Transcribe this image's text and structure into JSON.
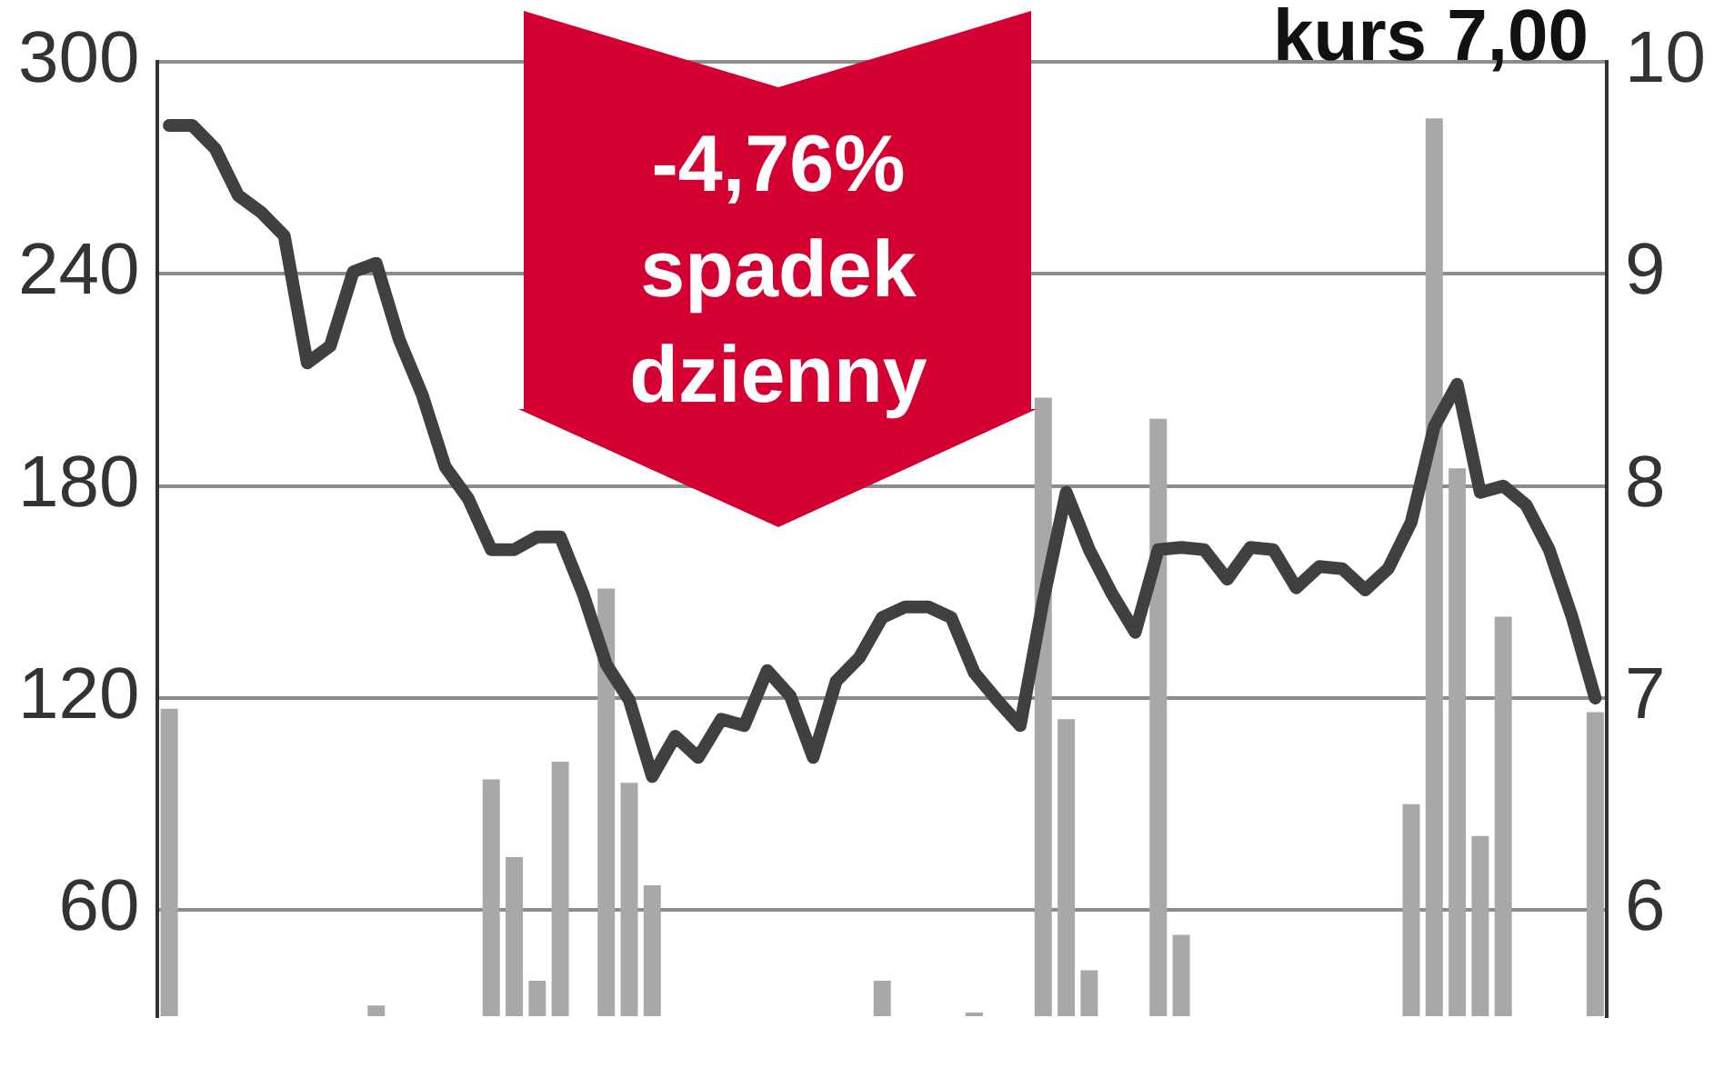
{
  "chart_data": {
    "type": "bar",
    "title": "kurs 7,00",
    "categories": [
      null,
      null,
      null,
      null,
      null,
      null,
      null,
      null,
      null,
      null,
      null,
      null,
      null,
      null,
      null,
      null,
      null,
      null,
      null,
      null,
      null,
      null,
      null,
      null,
      null,
      null,
      null,
      null,
      null,
      null,
      null,
      null,
      null,
      null,
      null,
      null,
      null,
      null,
      null,
      null,
      null,
      null,
      null,
      null,
      null,
      null,
      null,
      null,
      null,
      null,
      null,
      null,
      null,
      null,
      null,
      null,
      null,
      null,
      null,
      null,
      null,
      null,
      null
    ],
    "series": [
      {
        "color": "#a8a8a8",
        "values": [
          117,
          null,
          null,
          null,
          null,
          null,
          null,
          null,
          null,
          33,
          null,
          null,
          null,
          null,
          97,
          75,
          40,
          102,
          null,
          151,
          96,
          67,
          null,
          null,
          null,
          null,
          null,
          null,
          null,
          null,
          null,
          40,
          null,
          null,
          null,
          31,
          null,
          null,
          205,
          114,
          43,
          null,
          null,
          199,
          53,
          null,
          null,
          null,
          null,
          null,
          null,
          null,
          null,
          null,
          90,
          284,
          185,
          81,
          143,
          null,
          null,
          null,
          116
        ]
      },
      {
        "type": "line",
        "axis": "y2",
        "color": "#404040",
        "values": [
          9.7,
          9.7,
          9.59,
          9.37,
          9.29,
          9.18,
          8.58,
          8.66,
          9.01,
          9.05,
          8.69,
          8.43,
          8.09,
          7.94,
          7.7,
          7.7,
          7.76,
          7.76,
          7.49,
          7.16,
          6.99,
          6.63,
          6.82,
          6.72,
          6.9,
          6.87,
          7.13,
          7.01,
          6.72,
          7.08,
          7.19,
          7.38,
          7.43,
          7.43,
          7.38,
          7.12,
          6.99,
          6.87,
          7.46,
          7.97,
          7.7,
          7.49,
          7.31,
          7.7,
          7.71,
          7.7,
          7.56,
          7.71,
          7.7,
          7.52,
          7.62,
          7.61,
          7.51,
          7.61,
          7.83,
          8.28,
          8.48,
          7.97,
          8.0,
          7.91,
          7.7,
          7.38,
          7.0
        ]
      }
    ],
    "ylim": [
      30,
      300
    ],
    "yticks": [
      60,
      120,
      180,
      240,
      300
    ],
    "y2lim": [
      5.5,
      10
    ],
    "y2ticks": [
      6,
      7,
      8,
      9,
      10
    ],
    "grid": "y",
    "legend": false,
    "marker": "none",
    "line_style": "solid",
    "annotations": [
      "-4,76% spadek dzienny"
    ]
  }
}
